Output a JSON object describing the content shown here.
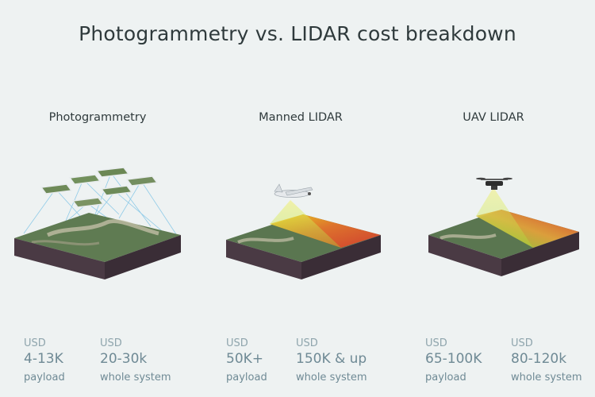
{
  "title": "Photogrammetry vs. LIDAR cost breakdown",
  "columns": [
    {
      "name": "Photogrammetry",
      "prices": [
        {
          "currency": "USD",
          "amount": "4-13K",
          "note": "payload"
        },
        {
          "currency": "USD",
          "amount": "20-30k",
          "note": "whole system"
        }
      ]
    },
    {
      "name": "Manned LIDAR",
      "prices": [
        {
          "currency": "USD",
          "amount": "50K+",
          "note": "payload"
        },
        {
          "currency": "USD",
          "amount": "150K & up",
          "note": "whole system"
        }
      ]
    },
    {
      "name": "UAV LIDAR",
      "prices": [
        {
          "currency": "USD",
          "amount": "65-100K",
          "note": "payload"
        },
        {
          "currency": "USD",
          "amount": "80-120k",
          "note": "whole system"
        }
      ]
    }
  ],
  "colors": {
    "background": "#eef2f2",
    "terrain": "#5f7b52",
    "soil": "#4a3a44",
    "lidar_heat": "#e94b2a",
    "beam": "#b6f03c",
    "photo_lines": "#7fc4e6",
    "price_text": "#6f8a95"
  }
}
